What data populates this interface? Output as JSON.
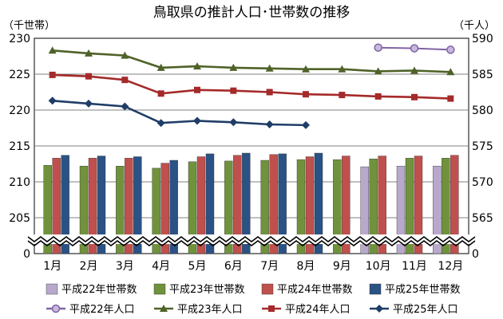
{
  "chart_data": {
    "type": "bar+line",
    "title": "鳥取県の推計人口･世帯数の推移",
    "left_axis_label": "（千世帯）",
    "right_axis_label": "（千人）",
    "categories": [
      "1月",
      "2月",
      "3月",
      "4月",
      "5月",
      "6月",
      "7月",
      "8月",
      "9月",
      "10月",
      "11月",
      "12月"
    ],
    "left_ticks": [
      "230",
      "225",
      "220",
      "215",
      "210",
      "205",
      "0"
    ],
    "right_ticks": [
      "590",
      "585",
      "580",
      "575",
      "570",
      "565",
      "0"
    ],
    "left_range": [
      200,
      230
    ],
    "right_range": [
      560,
      590
    ],
    "axis_break": true,
    "grid": true,
    "legend_position": "bottom",
    "colors": {
      "h22": "#b8a9cc",
      "h23": "#70923c",
      "h24": "#c0504d",
      "h25": "#2b5285",
      "h22_line": "#8064a2",
      "h23_line": "#4f6228",
      "h24_line": "#a52a2a",
      "h25_line": "#1f3d66"
    },
    "bar_series": [
      {
        "name": "平成22年世帯数",
        "key": "h22",
        "values": [
          null,
          null,
          null,
          null,
          null,
          null,
          null,
          null,
          null,
          212.1,
          212.2,
          212.2
        ]
      },
      {
        "name": "平成23年世帯数",
        "key": "h23",
        "values": [
          212.3,
          212.2,
          212.2,
          211.9,
          212.8,
          212.9,
          213.0,
          213.1,
          213.1,
          213.2,
          213.3,
          213.3
        ]
      },
      {
        "name": "平成24年世帯数",
        "key": "h24",
        "values": [
          213.3,
          213.3,
          213.3,
          212.6,
          213.5,
          213.7,
          213.8,
          213.5,
          213.6,
          213.6,
          213.6,
          213.7
        ]
      },
      {
        "name": "平成25年世帯数",
        "key": "h25",
        "values": [
          213.7,
          213.6,
          213.5,
          213.0,
          213.9,
          214.0,
          213.9,
          214.0,
          null,
          null,
          null,
          null
        ]
      }
    ],
    "line_series": [
      {
        "name": "平成22年人口",
        "key": "h22_line",
        "marker": "circle",
        "values": [
          null,
          null,
          null,
          null,
          null,
          null,
          null,
          null,
          null,
          588.7,
          588.6,
          588.4
        ]
      },
      {
        "name": "平成23年人口",
        "key": "h23_line",
        "marker": "triangle",
        "values": [
          588.3,
          587.9,
          587.6,
          585.9,
          586.1,
          585.9,
          585.8,
          585.7,
          585.7,
          585.4,
          585.5,
          585.3
        ]
      },
      {
        "name": "平成24年人口",
        "key": "h24_line",
        "marker": "square",
        "values": [
          584.9,
          584.7,
          584.2,
          582.3,
          582.8,
          582.7,
          582.5,
          582.2,
          582.1,
          581.9,
          581.8,
          581.6
        ]
      },
      {
        "name": "平成25年人口",
        "key": "h25_line",
        "marker": "diamond",
        "values": [
          581.3,
          580.9,
          580.5,
          578.2,
          578.5,
          578.3,
          578.0,
          577.9,
          null,
          null,
          null,
          null
        ]
      }
    ]
  }
}
